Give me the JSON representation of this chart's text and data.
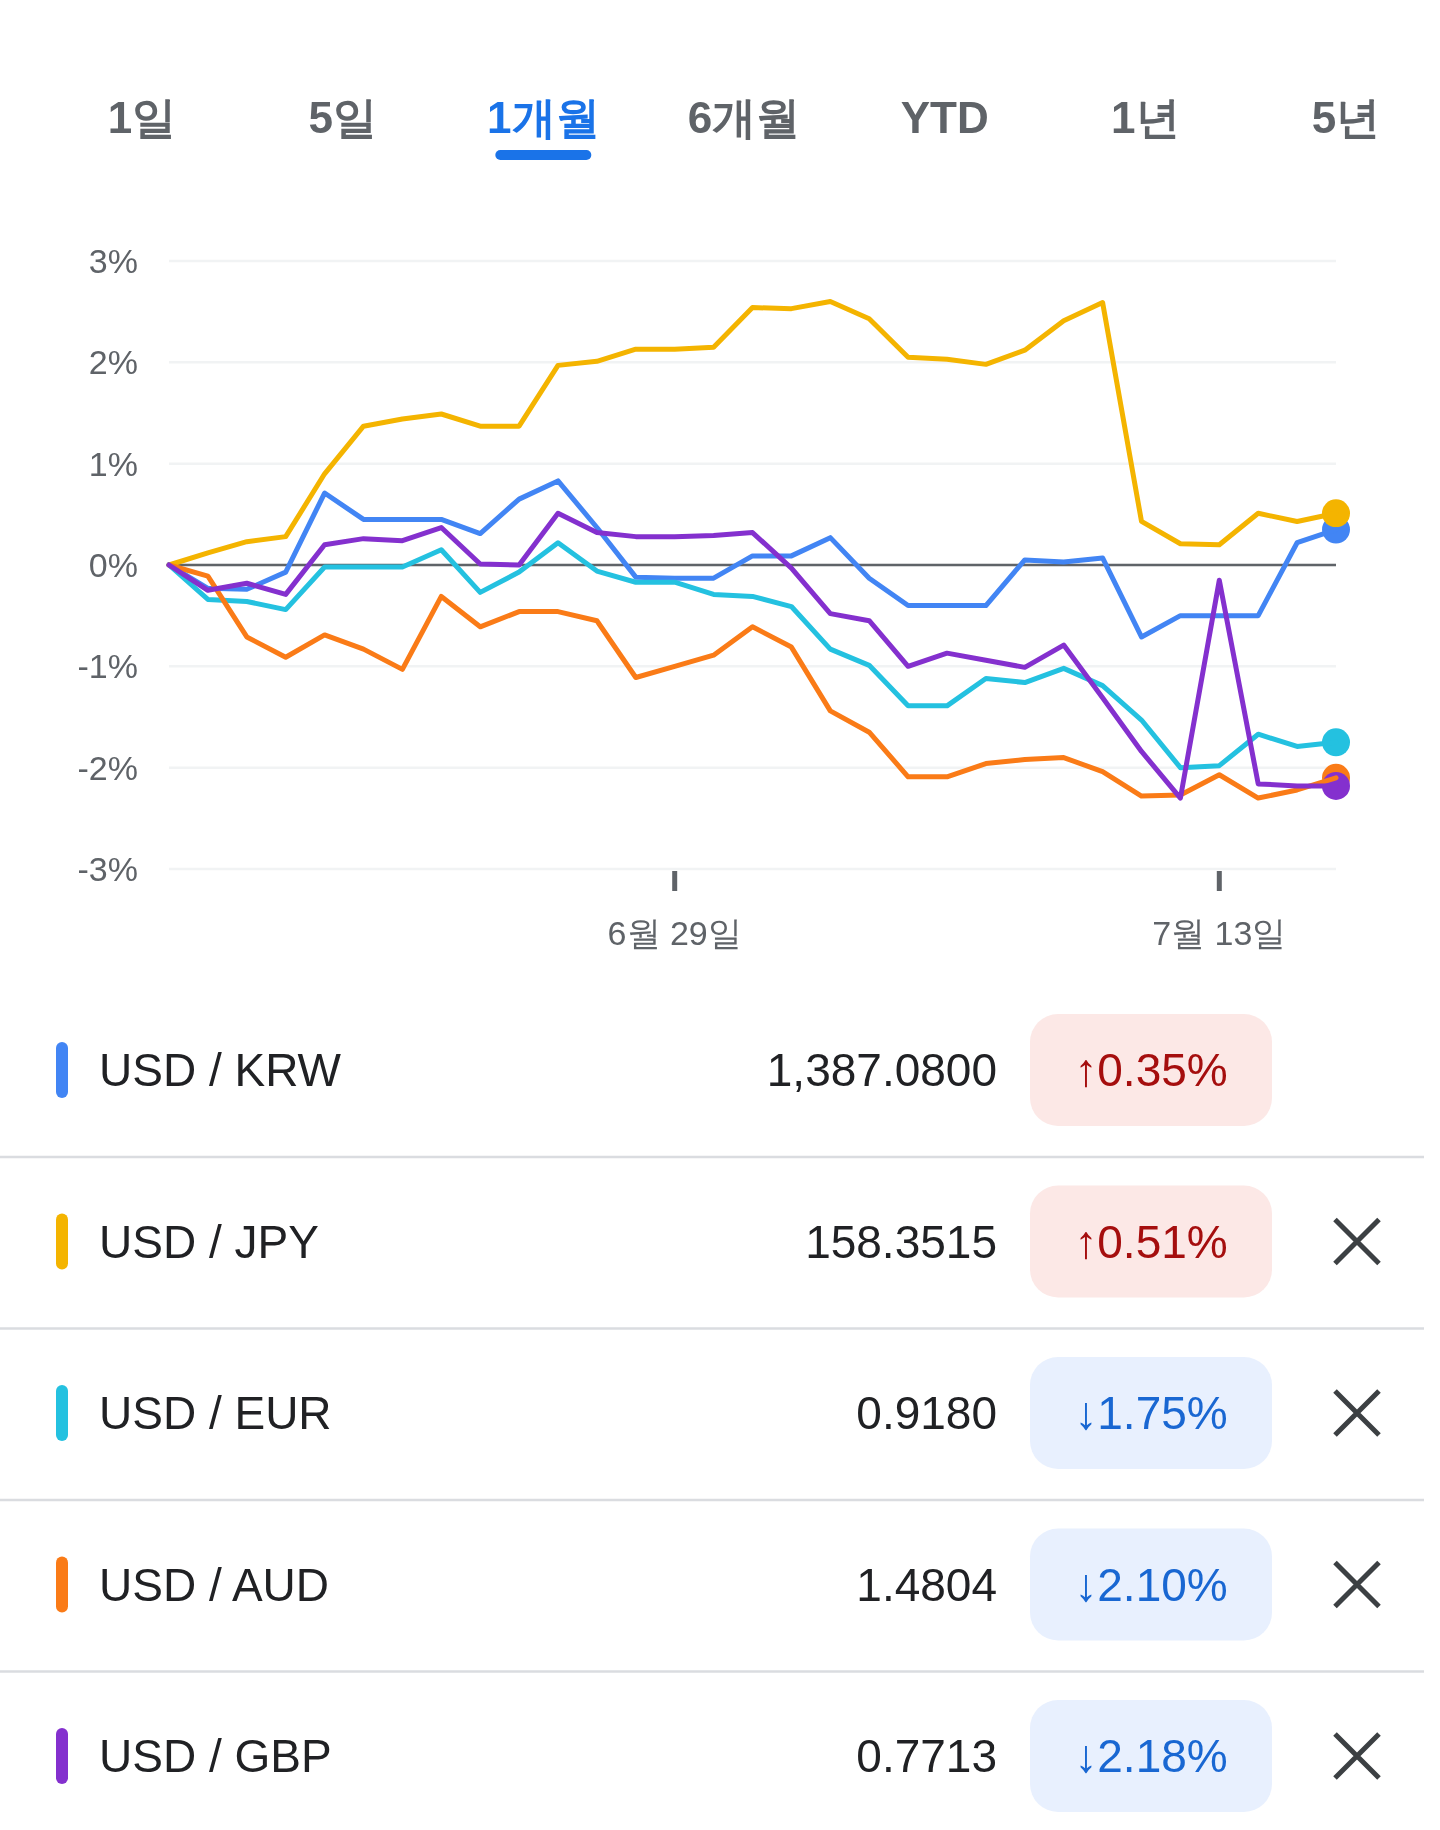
{
  "chart_data": {
    "type": "line",
    "x": [
      "--06-16",
      "--06-17",
      "--06-18",
      "--06-19",
      "--06-20",
      "--06-21",
      "--06-22",
      "--06-23",
      "--06-24",
      "--06-25",
      "--06-26",
      "--06-27",
      "--06-28",
      "--06-29",
      "--06-30",
      "--07-01",
      "--07-02",
      "--07-03",
      "--07-04",
      "--07-05",
      "--07-06",
      "--07-07",
      "--07-08",
      "--07-09",
      "--07-10",
      "--07-11",
      "--07-12",
      "--07-13",
      "--07-14",
      "--07-15",
      "--07-16"
    ],
    "series": [
      {
        "name": "USD / KRW",
        "color": "#4285f4",
        "values": [
          0,
          -0.23,
          -0.24,
          -0.07,
          0.71,
          0.45,
          0.45,
          0.45,
          0.31,
          0.65,
          0.83,
          0.37,
          -0.12,
          -0.13,
          -0.13,
          0.09,
          0.09,
          0.27,
          -0.13,
          -0.4,
          -0.4,
          -0.4,
          0.05,
          0.03,
          0.07,
          -0.71,
          -0.5,
          -0.5,
          -0.5,
          0.22,
          0.35
        ]
      },
      {
        "name": "USD / JPY",
        "color": "#f4b400",
        "values": [
          0,
          0.12,
          0.23,
          0.28,
          0.9,
          1.37,
          1.44,
          1.49,
          1.37,
          1.37,
          1.97,
          2.01,
          2.13,
          2.13,
          2.15,
          2.54,
          2.53,
          2.6,
          2.43,
          2.05,
          2.03,
          1.98,
          2.12,
          2.41,
          2.59,
          0.43,
          0.21,
          0.2,
          0.51,
          0.43,
          0.51
        ]
      },
      {
        "name": "USD / EUR",
        "color": "#24c1e0",
        "values": [
          0,
          -0.34,
          -0.36,
          -0.44,
          -0.02,
          -0.02,
          -0.02,
          0.15,
          -0.27,
          -0.07,
          0.22,
          -0.06,
          -0.17,
          -0.17,
          -0.29,
          -0.31,
          -0.41,
          -0.83,
          -0.99,
          -1.39,
          -1.39,
          -1.12,
          -1.16,
          -1.02,
          -1.19,
          -1.53,
          -2.0,
          -1.98,
          -1.67,
          -1.79,
          -1.75
        ]
      },
      {
        "name": "USD / AUD",
        "color": "#fa7b17",
        "values": [
          0,
          -0.11,
          -0.71,
          -0.91,
          -0.69,
          -0.83,
          -1.03,
          -0.31,
          -0.61,
          -0.46,
          -0.46,
          -0.55,
          -1.11,
          -1.0,
          -0.89,
          -0.61,
          -0.81,
          -1.44,
          -1.65,
          -2.09,
          -2.09,
          -1.96,
          -1.92,
          -1.9,
          -2.04,
          -2.28,
          -2.27,
          -2.07,
          -2.3,
          -2.22,
          -2.1
        ]
      },
      {
        "name": "USD / GBP",
        "color": "#8430ce",
        "values": [
          0,
          -0.25,
          -0.18,
          -0.29,
          0.2,
          0.26,
          0.24,
          0.37,
          0.01,
          0.0,
          0.51,
          0.32,
          0.28,
          0.28,
          0.29,
          0.32,
          -0.03,
          -0.48,
          -0.55,
          -1.0,
          -0.87,
          -0.94,
          -1.01,
          -0.79,
          -1.31,
          -1.84,
          -2.3,
          -0.15,
          -2.16,
          -2.18,
          -2.18
        ]
      }
    ],
    "xlim": [
      "--06-16",
      "--07-16"
    ],
    "xticks": [
      {
        "value": "--06-29",
        "label": "6월 29일"
      },
      {
        "value": "--07-13",
        "label": "7월 13일"
      }
    ],
    "ylim": [
      -3,
      3
    ],
    "yticks": [
      {
        "value": 3,
        "label": "3%"
      },
      {
        "value": 2,
        "label": "2%"
      },
      {
        "value": 1,
        "label": "1%"
      },
      {
        "value": 0,
        "label": "0%"
      },
      {
        "value": -1,
        "label": "-1%"
      },
      {
        "value": -2,
        "label": "-2%"
      },
      {
        "value": -3,
        "label": "-3%"
      }
    ],
    "ref_lines": [
      {
        "axis": "y",
        "value": 0,
        "color": "#5f6368"
      }
    ],
    "grid": "y",
    "legend": "bottom",
    "annotations": [
      "1일",
      "5일",
      "1개월",
      "6개월",
      "YTD",
      "1년",
      "5년",
      "1,387.0800",
      "↑0.35%",
      "158.3515",
      "↑0.51%",
      "0.9180",
      "↓1.75%",
      "1.4804",
      "↓2.10%",
      "0.7713",
      "↓2.18%"
    ]
  }
}
